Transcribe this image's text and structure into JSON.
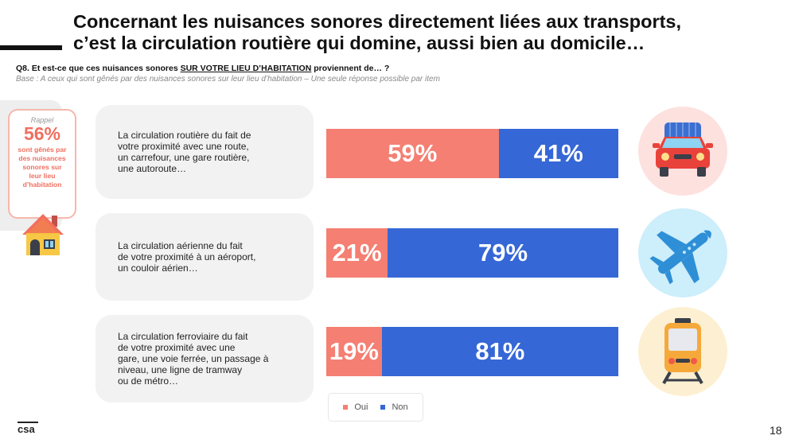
{
  "title": {
    "line1": "Concernant les nuisances sonores directement liées aux transports,",
    "line2": "c’est la circulation routière qui domine, aussi bien au domicile…"
  },
  "question": {
    "prefix": "Q8. Et est-ce que ces nuisances sonores ",
    "highlight": "SUR VOTRE LIEU D’HABITATION",
    "suffix": " proviennent de… ?"
  },
  "base": "Base : A ceux qui sont gênés par des nuisances sonores sur leur lieu d’habitation – Une seule réponse possible par item",
  "rappel": {
    "label": "Rappel",
    "percent": "56%",
    "text": "sont gênés par des nuisances sonores sur leur lieu d’habitation"
  },
  "items": [
    {
      "label": "La circulation routière du fait de\nvotre proximité avec une route,\nun carrefour, une gare routière,\nune autoroute…",
      "icon": "car-icon",
      "icon_bg": "#fde1df"
    },
    {
      "label": "La circulation aérienne du fait\nde votre proximité à un aéroport,\nun couloir aérien…",
      "icon": "airplane-icon",
      "icon_bg": "#cdeefb"
    },
    {
      "label": "La circulation ferroviaire du fait\nde votre proximité avec une\ngare, une voie ferrée, un passage à\nniveau, une ligne de tramway\nou de métro…",
      "icon": "train-icon",
      "icon_bg": "#fdf0d2"
    }
  ],
  "chart_data": {
    "type": "bar",
    "orientation": "horizontal",
    "stacked": true,
    "normalized": true,
    "categories": [
      "La circulation routière du fait de votre proximité avec une route, un carrefour, une gare routière, une autoroute…",
      "La circulation aérienne du fait de votre proximité à un aéroport, un couloir aérien…",
      "La circulation ferroviaire du fait de votre proximité avec une gare, une voie ferrée, un passage à niveau, une ligne de tramway ou de métro…"
    ],
    "series": [
      {
        "name": "Oui",
        "color": "#f47f72",
        "values": [
          59,
          21,
          19
        ],
        "labels": [
          "59%",
          "21%",
          "19%"
        ]
      },
      {
        "name": "Non",
        "color": "#3567d6",
        "values": [
          41,
          79,
          81
        ],
        "labels": [
          "41%",
          "79%",
          "81%"
        ]
      }
    ],
    "legend_position": "bottom",
    "grid": false
  },
  "page_number": "18",
  "logo_text": "csa"
}
